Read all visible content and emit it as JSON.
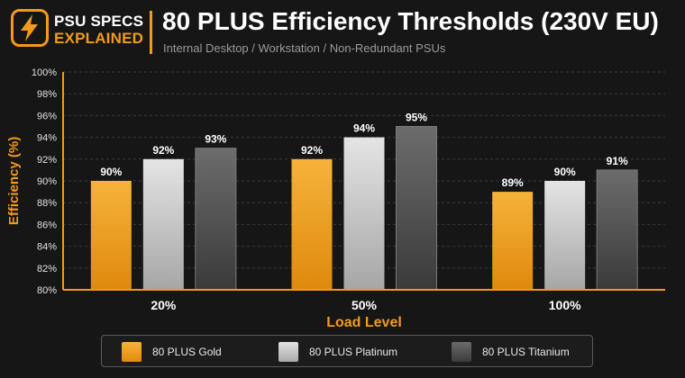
{
  "brand": {
    "line1": "PSU SPECS",
    "line2": "EXPLAINED",
    "icon": "lightning-bolt-icon",
    "accent": "#f39a1a"
  },
  "header": {
    "title": "80 PLUS Efficiency Thresholds (230V EU)",
    "subtitle": "Internal Desktop / Workstation / Non-Redundant PSUs"
  },
  "chart_data": {
    "type": "bar",
    "title": "80 PLUS Efficiency Thresholds (230V EU)",
    "subtitle": "Internal Desktop / Workstation / Non-Redundant PSUs",
    "xlabel": "Load Level",
    "ylabel": "Efficiency (%)",
    "categories": [
      "20%",
      "50%",
      "100%"
    ],
    "series": [
      {
        "name": "80 PLUS Gold",
        "values": [
          90,
          92,
          89
        ],
        "labels": [
          "90%",
          "92%",
          "89%"
        ],
        "color": "#f2a01c"
      },
      {
        "name": "80 PLUS Platinum",
        "values": [
          92,
          94,
          90
        ],
        "labels": [
          "92%",
          "94%",
          "90%"
        ],
        "color": "#cfcfcf"
      },
      {
        "name": "80 PLUS Titanium",
        "values": [
          93,
          95,
          91
        ],
        "labels": [
          "93%",
          "95%",
          "91%"
        ],
        "color": "#505050"
      }
    ],
    "ylim": [
      80,
      100
    ],
    "yticks": [
      80,
      82,
      84,
      86,
      88,
      90,
      92,
      94,
      96,
      98,
      100
    ],
    "ytick_labels": [
      "80%",
      "82%",
      "84%",
      "86%",
      "88%",
      "90%",
      "92%",
      "94%",
      "96%",
      "98%",
      "100%"
    ],
    "grid": true,
    "legend_position": "bottom"
  },
  "legend": {
    "items": [
      {
        "label": "80 PLUS Gold",
        "color": "#f2a01c"
      },
      {
        "label": "80 PLUS Platinum",
        "color": "#cfcfcf"
      },
      {
        "label": "80 PLUS Titanium",
        "color": "#505050"
      }
    ]
  }
}
